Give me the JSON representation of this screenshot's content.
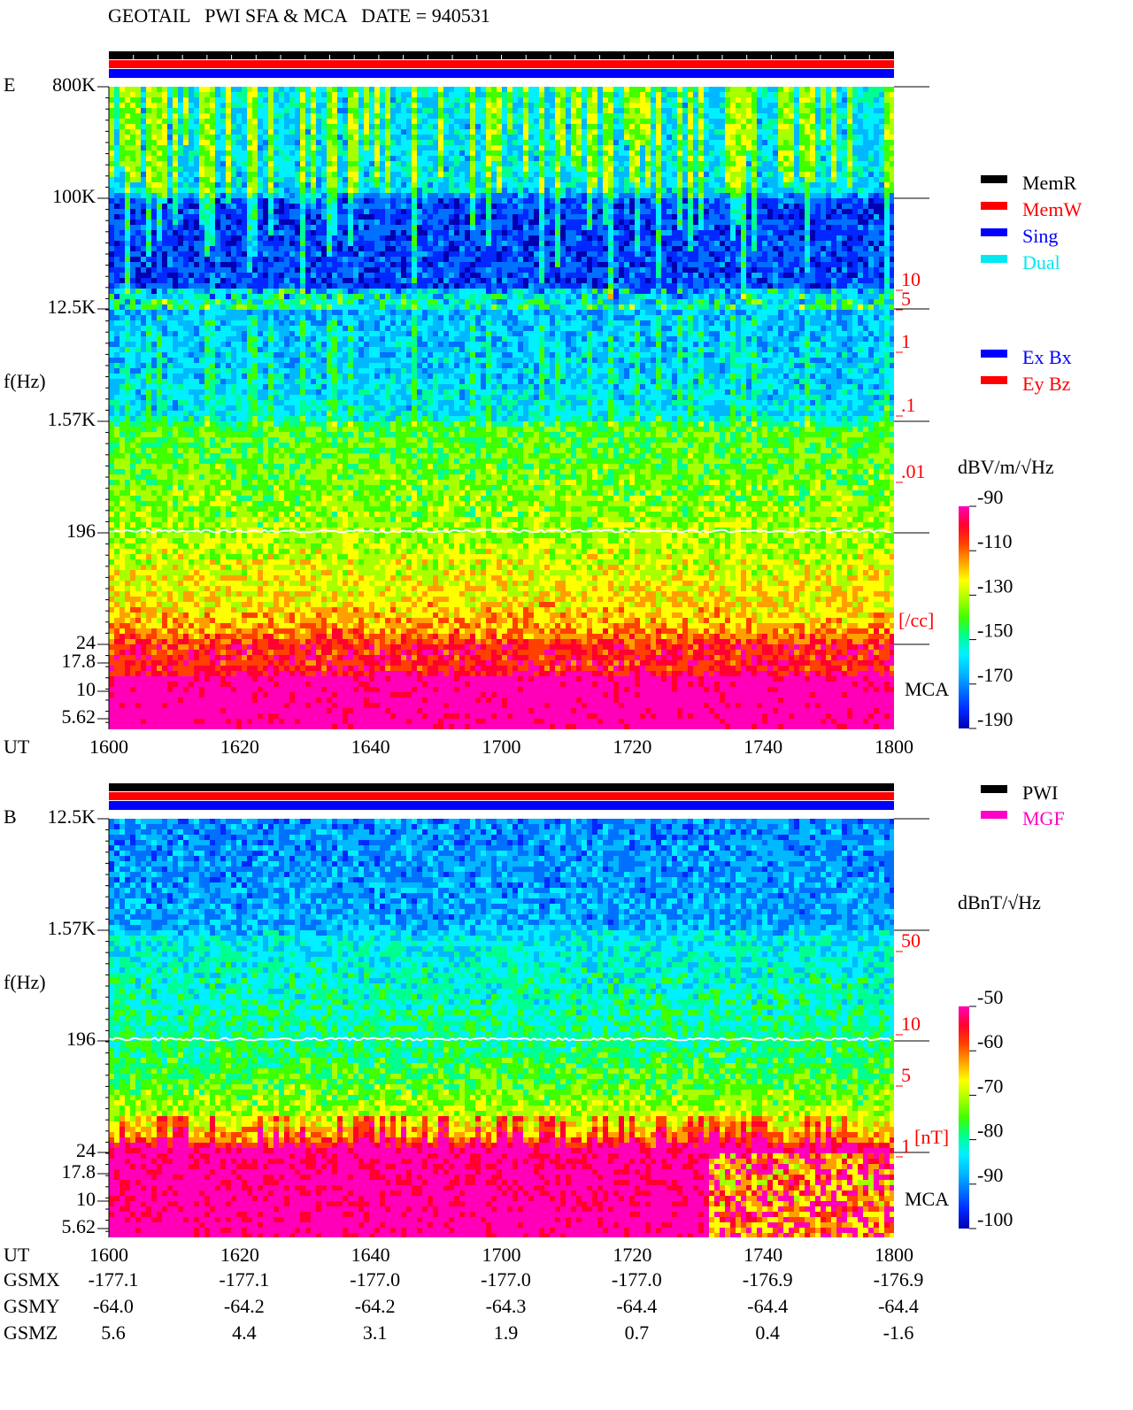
{
  "header": {
    "title": "GEOTAIL   PWI SFA & MCA   DATE = 940531"
  },
  "panels": [
    {
      "label": "E",
      "y_axis_label": "f(Hz)",
      "time_label": "UT",
      "freq_ticks": [
        "800K",
        "100K",
        "12.5K",
        "1.57K",
        "196",
        "24",
        "17.8",
        "10",
        "5.62"
      ],
      "time_ticks": [
        "1600",
        "1620",
        "1640",
        "1700",
        "1720",
        "1740",
        "1800"
      ],
      "side_ticks": [
        "10",
        "5",
        "1",
        ".1",
        ".01"
      ],
      "side_unit": "[/cc]",
      "mca_label": "MCA",
      "legend_top": [
        {
          "name": "MemR",
          "color": "#000000"
        },
        {
          "name": "MemW",
          "color": "#ff0000"
        },
        {
          "name": "Sing",
          "color": "#0000ff"
        },
        {
          "name": "Dual",
          "color": "#00e8f0"
        }
      ],
      "legend_bottom": [
        {
          "name": "Ex Bx",
          "color": "#0000ff"
        },
        {
          "name": "Ey Bz",
          "color": "#ff0000"
        }
      ],
      "colorbar_unit": "dBV/m/√Hz",
      "colorbar_ticks": [
        "-90",
        "-110",
        "-130",
        "-150",
        "-170",
        "-190"
      ]
    },
    {
      "label": "B",
      "y_axis_label": "f(Hz)",
      "time_label": "UT",
      "freq_ticks": [
        "12.5K",
        "1.57K",
        "196",
        "24",
        "17.8",
        "10",
        "5.62"
      ],
      "time_ticks": [
        "1600",
        "1620",
        "1640",
        "1700",
        "1720",
        "1740",
        "1800"
      ],
      "side_ticks": [
        "50",
        "10",
        "5",
        "1"
      ],
      "side_unit": "[nT]",
      "mca_label": "MCA",
      "legend_top": [
        {
          "name": "PWI",
          "color": "#000000"
        },
        {
          "name": "MGF",
          "color": "#ff00c8"
        }
      ],
      "legend_bottom": [],
      "colorbar_unit": "dBnT/√Hz",
      "colorbar_ticks": [
        "-50",
        "-60",
        "-70",
        "-80",
        "-90",
        "-100"
      ]
    }
  ],
  "orbit": [
    {
      "label": "GSMX",
      "values": [
        "-177.1",
        "-177.1",
        "-177.0",
        "-177.0",
        "-177.0",
        "-176.9",
        "-176.9"
      ]
    },
    {
      "label": "GSMY",
      "values": [
        "-64.0",
        "-64.2",
        "-64.2",
        "-64.3",
        "-64.4",
        "-64.4",
        "-64.4"
      ]
    },
    {
      "label": "GSMZ",
      "values": [
        "5.6",
        "4.4",
        "3.1",
        "1.9",
        "0.7",
        "0.4",
        "-1.6"
      ]
    }
  ]
}
